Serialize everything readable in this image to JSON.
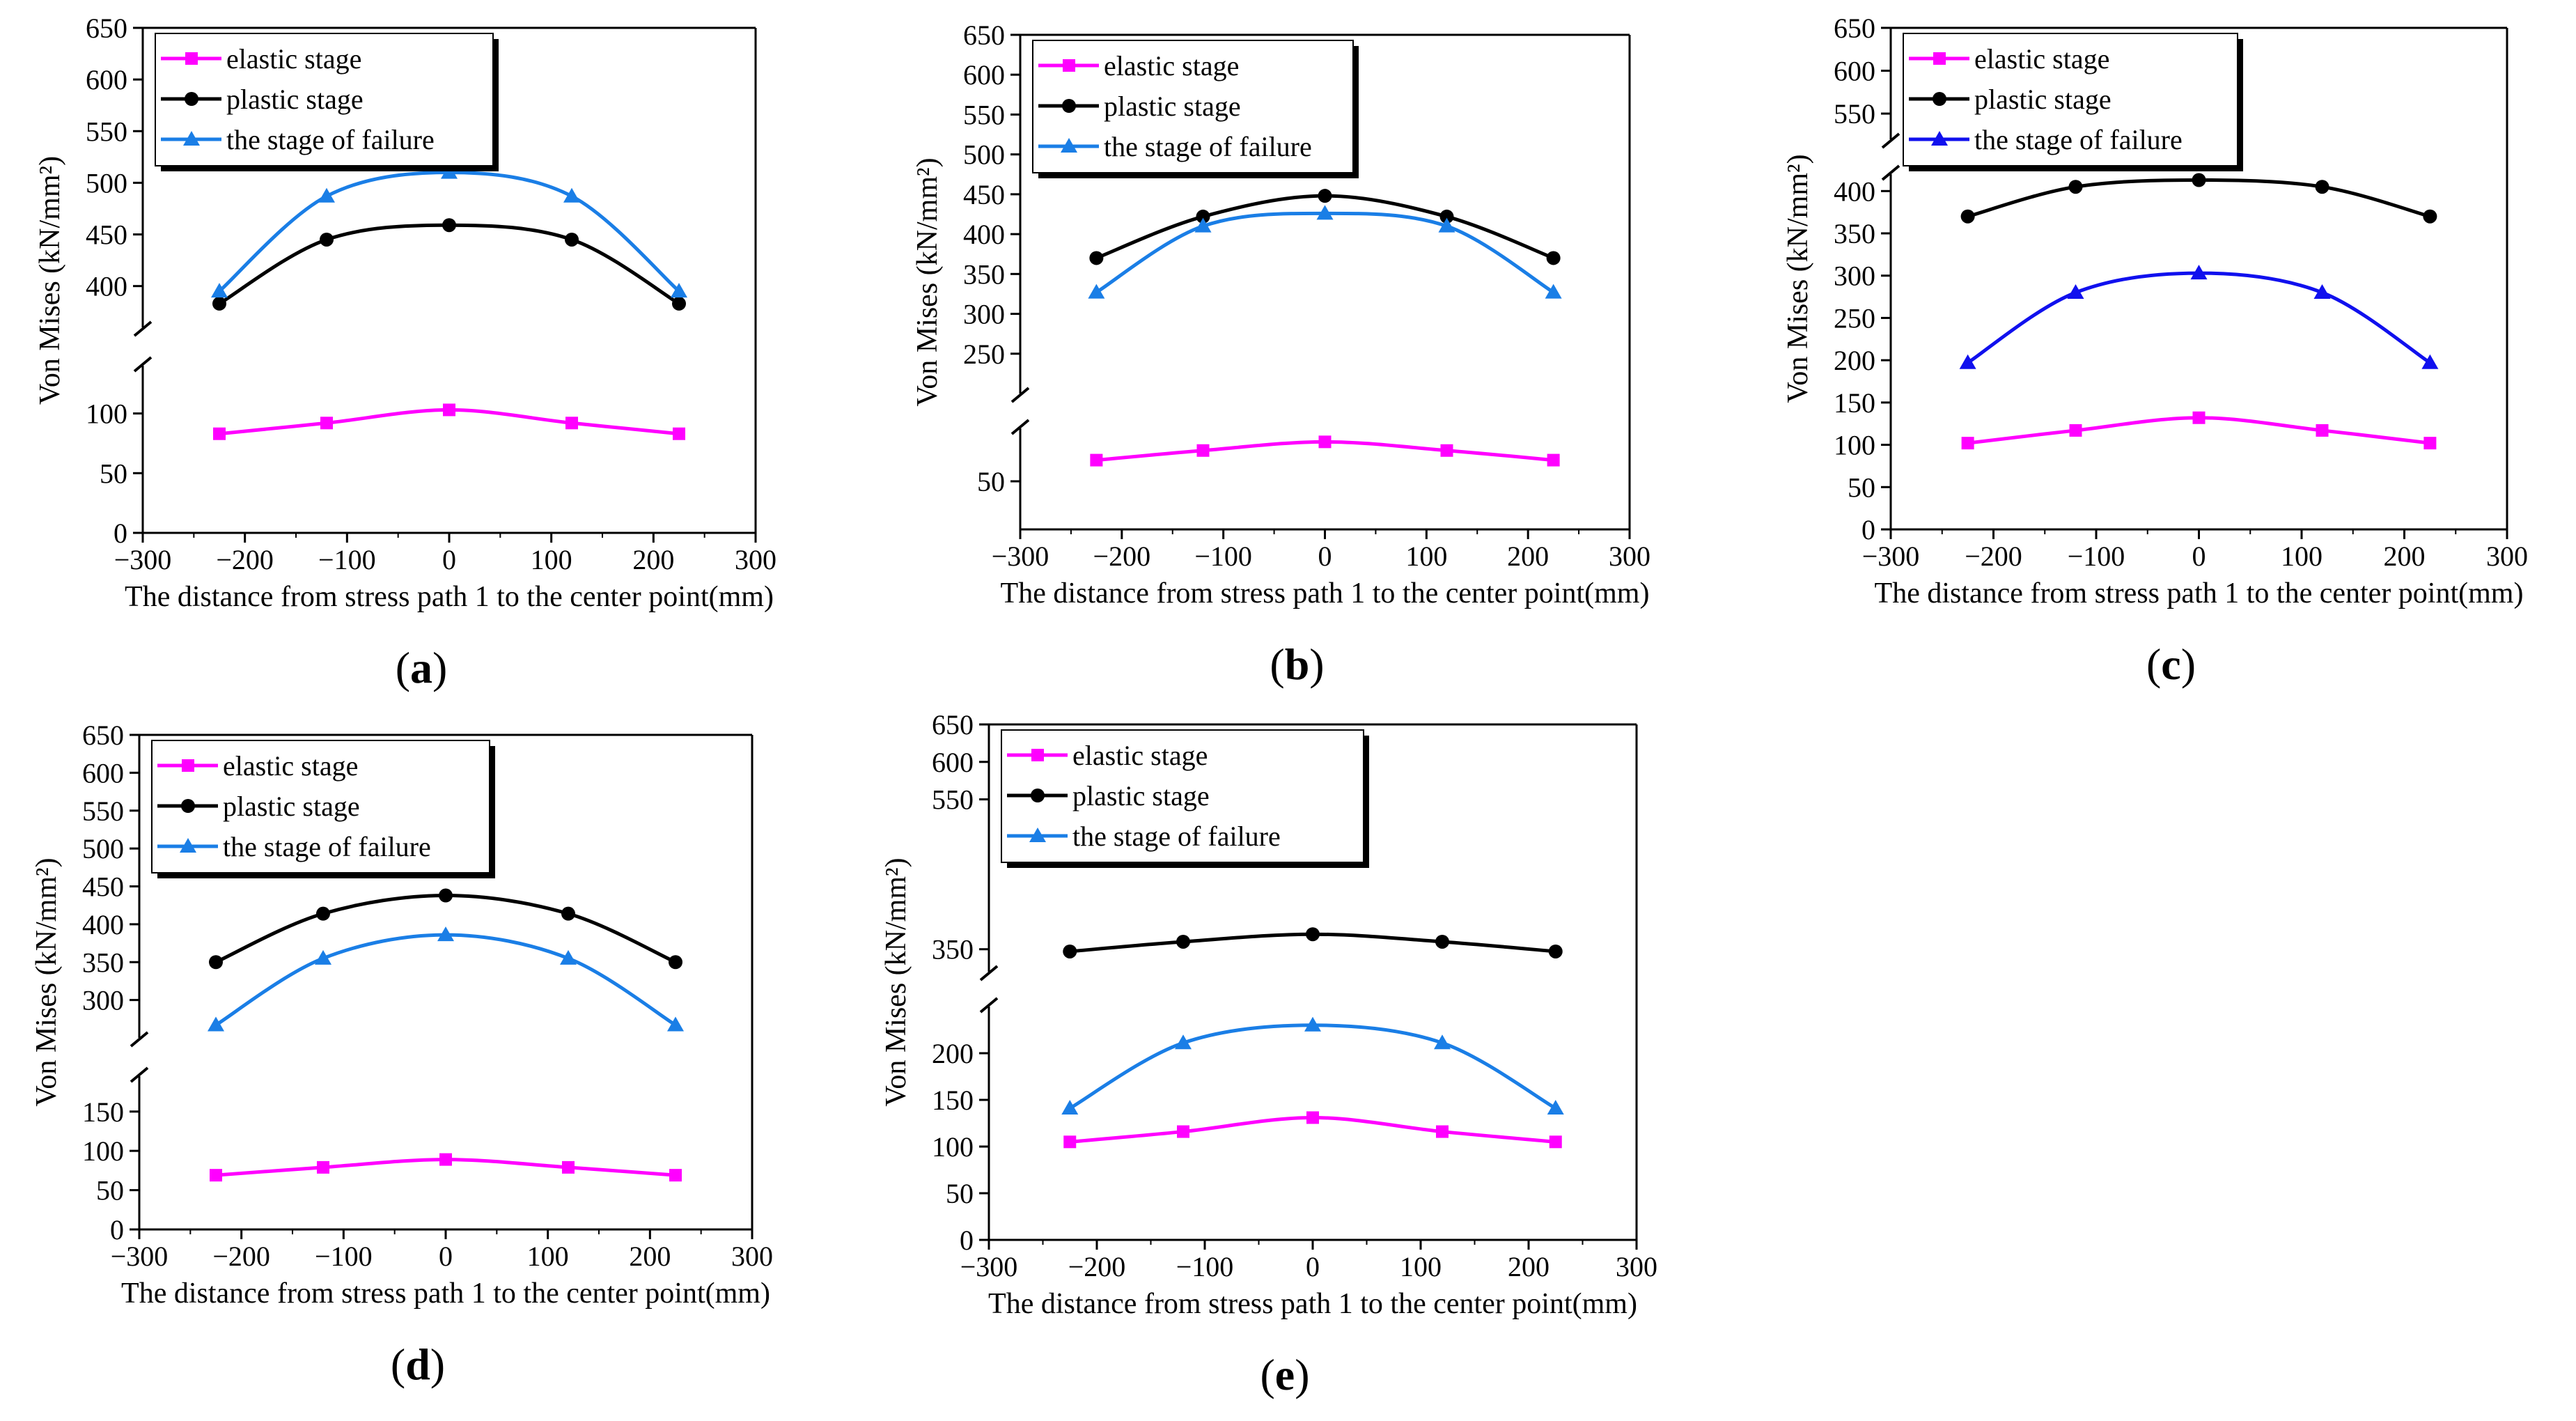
{
  "figure": {
    "colors": {
      "elastic": "#ff00ff",
      "plastic": "#000000",
      "failure_light": "#1a7ee6",
      "failure_dark": "#1010ee"
    }
  },
  "chart_data": [
    {
      "panel": "(a)",
      "panel_letter": "a",
      "type": "line",
      "xlabel": "The distance from stress path 1 to the center point(mm)",
      "ylabel": "Von Mises (kN/mm²)",
      "xlim": [
        -300,
        300
      ],
      "xticks": [
        -300,
        -200,
        -100,
        0,
        100,
        200,
        300
      ],
      "y_break": true,
      "upper_ylim": [
        360,
        650
      ],
      "upper_ticks": [
        400,
        450,
        500,
        550,
        600,
        650
      ],
      "lower_ylim": [
        0,
        140
      ],
      "lower_ticks": [
        0,
        50,
        100
      ],
      "x": [
        -225,
        -120,
        0,
        120,
        225
      ],
      "legend": "top-left",
      "series": [
        {
          "name": "elastic stage",
          "marker": "square",
          "color": "#ff00ff",
          "values": [
            83,
            92,
            103,
            92,
            83
          ]
        },
        {
          "name": "plastic stage",
          "marker": "circle",
          "color": "#000000",
          "values": [
            383,
            445,
            459,
            445,
            383
          ]
        },
        {
          "name": "the stage of failure",
          "marker": "triangle",
          "color": "#1a7ee6",
          "values": [
            395,
            487,
            510,
            487,
            395
          ]
        }
      ]
    },
    {
      "panel": "(b)",
      "panel_letter": "b",
      "type": "line",
      "xlabel": "The distance from stress path 1 to the center point(mm)",
      "ylabel": "Von Mises (kN/mm²)",
      "xlim": [
        -300,
        300
      ],
      "xticks": [
        -300,
        -200,
        -100,
        0,
        100,
        200,
        300
      ],
      "y_break": true,
      "upper_ylim": [
        200,
        650
      ],
      "upper_ticks": [
        250,
        300,
        350,
        400,
        450,
        500,
        550,
        600,
        650
      ],
      "lower_ylim": [
        0,
        105
      ],
      "lower_ticks": [
        50
      ],
      "x": [
        -225,
        -120,
        0,
        120,
        225
      ],
      "legend": "top-left",
      "series": [
        {
          "name": "elastic stage",
          "marker": "square",
          "color": "#ff00ff",
          "values": [
            72,
            82,
            91,
            82,
            72
          ]
        },
        {
          "name": "plastic stage",
          "marker": "circle",
          "color": "#000000",
          "values": [
            370,
            422,
            448,
            422,
            370
          ]
        },
        {
          "name": "the stage of failure",
          "marker": "triangle",
          "color": "#1a7ee6",
          "values": [
            327,
            410,
            426,
            410,
            327
          ]
        }
      ]
    },
    {
      "panel": "(c)",
      "panel_letter": "c",
      "type": "line",
      "xlabel": "The distance from stress path 1 to the center point(mm)",
      "ylabel": "Von Mises (kN/mm²)",
      "xlim": [
        -300,
        300
      ],
      "xticks": [
        -300,
        -200,
        -100,
        0,
        100,
        200,
        300
      ],
      "y_break": true,
      "upper_ylim": [
        520,
        650
      ],
      "upper_ticks": [
        550,
        600,
        650
      ],
      "lower_ylim": [
        0,
        420
      ],
      "lower_ticks": [
        0,
        50,
        100,
        150,
        200,
        250,
        300,
        350,
        400
      ],
      "x": [
        -225,
        -120,
        0,
        120,
        225
      ],
      "legend": "top-left",
      "series": [
        {
          "name": "elastic stage",
          "marker": "square",
          "color": "#ff00ff",
          "values": [
            102,
            117,
            132,
            117,
            102
          ]
        },
        {
          "name": "plastic stage",
          "marker": "circle",
          "color": "#000000",
          "values": [
            370,
            405,
            413,
            405,
            370
          ]
        },
        {
          "name": "the stage of failure",
          "marker": "triangle",
          "color": "#1010ee",
          "values": [
            197,
            280,
            303,
            280,
            197
          ]
        }
      ]
    },
    {
      "panel": "(d)",
      "panel_letter": "d",
      "type": "line",
      "xlabel": "The distance from stress path 1 to the center point(mm)",
      "ylabel": "Von Mises (kN/mm²)",
      "xlim": [
        -300,
        300
      ],
      "xticks": [
        -300,
        -200,
        -100,
        0,
        100,
        200,
        300
      ],
      "y_break": true,
      "upper_ylim": [
        250,
        650
      ],
      "upper_ticks": [
        300,
        350,
        400,
        450,
        500,
        550,
        600,
        650
      ],
      "lower_ylim": [
        0,
        195
      ],
      "lower_ticks": [
        0,
        50,
        100,
        150
      ],
      "x": [
        -225,
        -120,
        0,
        120,
        225
      ],
      "legend": "top-left",
      "series": [
        {
          "name": "elastic stage",
          "marker": "square",
          "color": "#ff00ff",
          "values": [
            69,
            79,
            89,
            79,
            69
          ]
        },
        {
          "name": "plastic stage",
          "marker": "circle",
          "color": "#000000",
          "values": [
            350,
            414,
            438,
            414,
            350
          ]
        },
        {
          "name": "the stage of failure",
          "marker": "triangle",
          "color": "#1a7ee6",
          "values": [
            267,
            355,
            386,
            355,
            267
          ]
        }
      ]
    },
    {
      "panel": "(e)",
      "panel_letter": "e",
      "type": "line",
      "xlabel": "The distance from stress path 1 to the center point(mm)",
      "ylabel": "Von Mises (kN/mm²)",
      "xlim": [
        -300,
        300
      ],
      "xticks": [
        -300,
        -200,
        -100,
        0,
        100,
        200,
        300
      ],
      "y_break": true,
      "upper_ylim": [
        320,
        650
      ],
      "upper_ticks": [
        350,
        550,
        600,
        650
      ],
      "lower_ylim": [
        0,
        250
      ],
      "lower_ticks": [
        0,
        50,
        100,
        150,
        200
      ],
      "x": [
        -225,
        -120,
        0,
        120,
        225
      ],
      "legend": "top-left",
      "series": [
        {
          "name": "elastic stage",
          "marker": "square",
          "color": "#ff00ff",
          "values": [
            105,
            116,
            131,
            116,
            105
          ]
        },
        {
          "name": "plastic stage",
          "marker": "circle",
          "color": "#000000",
          "values": [
            347,
            360,
            370,
            360,
            347
          ]
        },
        {
          "name": "the stage of failure",
          "marker": "triangle",
          "color": "#1a7ee6",
          "values": [
            141,
            211,
            230,
            211,
            141
          ]
        }
      ]
    }
  ]
}
